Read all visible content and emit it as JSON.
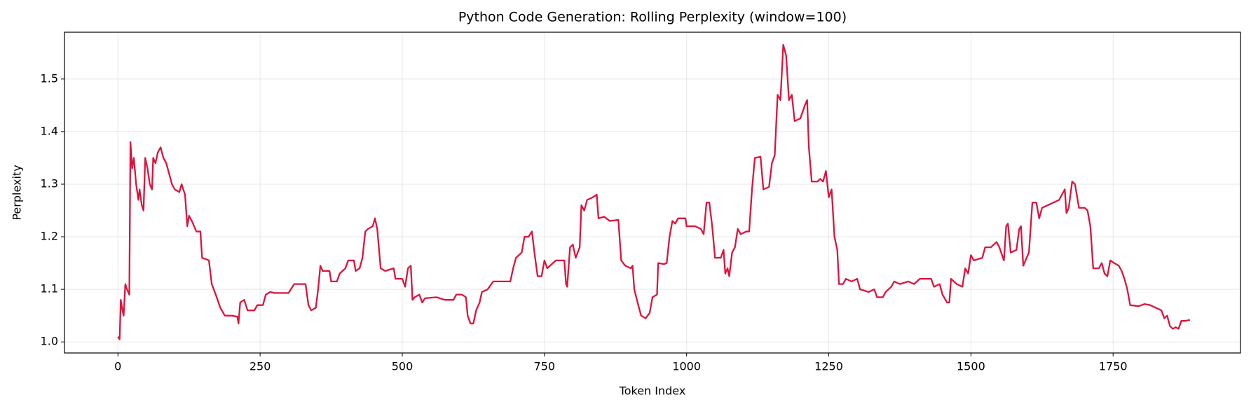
{
  "chart_data": {
    "type": "line",
    "title": "Python Code Generation: Rolling Perplexity (window=100)",
    "x_label": "Token Index",
    "y_label": "Perplexity",
    "xlim": [
      -94,
      1974
    ],
    "ylim": [
      0.979,
      1.589
    ],
    "xticks": [
      0,
      250,
      500,
      750,
      1000,
      1250,
      1500,
      1750
    ],
    "yticks": [
      {
        "value": 1,
        "label": "1.0"
      },
      1.1,
      1.2,
      1.3,
      1.4,
      1.5
    ],
    "grid": true,
    "series": [
      {
        "color": "#dc143c",
        "x": [
          0,
          3,
          5,
          8,
          10,
          13,
          16,
          20,
          22,
          25,
          28,
          32,
          36,
          38,
          42,
          45,
          48,
          52,
          56,
          60,
          62,
          66,
          70,
          75,
          80,
          85,
          90,
          95,
          100,
          108,
          112,
          118,
          122,
          125,
          130,
          138,
          145,
          148,
          160,
          165,
          172,
          180,
          188,
          200,
          210,
          212,
          215,
          222,
          228,
          240,
          245,
          255,
          260,
          268,
          275,
          300,
          310,
          330,
          335,
          340,
          348,
          352,
          356,
          360,
          372,
          375,
          385,
          390,
          400,
          405,
          415,
          418,
          425,
          430,
          435,
          440,
          448,
          452,
          456,
          462,
          470,
          485,
          488,
          500,
          505,
          510,
          515,
          518,
          522,
          530,
          535,
          540,
          560,
          575,
          590,
          595,
          605,
          612,
          615,
          620,
          625,
          630,
          636,
          640,
          650,
          660,
          670,
          690,
          695,
          700,
          710,
          715,
          722,
          728,
          733,
          738,
          745,
          750,
          755,
          765,
          770,
          785,
          788,
          790,
          795,
          800,
          805,
          812,
          815,
          820,
          825,
          835,
          842,
          845,
          855,
          865,
          880,
          885,
          892,
          902,
          905,
          908,
          915,
          920,
          928,
          935,
          940,
          948,
          950,
          960,
          965,
          970,
          975,
          980,
          985,
          998,
          1000,
          1015,
          1025,
          1030,
          1035,
          1040,
          1045,
          1050,
          1060,
          1065,
          1068,
          1072,
          1075,
          1080,
          1085,
          1090,
          1095,
          1105,
          1110,
          1115,
          1120,
          1130,
          1135,
          1145,
          1150,
          1155,
          1160,
          1165,
          1170,
          1175,
          1180,
          1185,
          1190,
          1200,
          1208,
          1212,
          1215,
          1220,
          1230,
          1235,
          1240,
          1245,
          1250,
          1255,
          1260,
          1265,
          1268,
          1275,
          1280,
          1290,
          1300,
          1305,
          1320,
          1330,
          1335,
          1345,
          1350,
          1360,
          1365,
          1375,
          1390,
          1400,
          1410,
          1430,
          1435,
          1445,
          1450,
          1458,
          1462,
          1465,
          1475,
          1485,
          1490,
          1495,
          1500,
          1505,
          1520,
          1525,
          1535,
          1545,
          1550,
          1558,
          1562,
          1565,
          1570,
          1580,
          1585,
          1588,
          1592,
          1598,
          1602,
          1608,
          1615,
          1620,
          1625,
          1635,
          1645,
          1655,
          1660,
          1665,
          1668,
          1672,
          1678,
          1683,
          1690,
          1700,
          1705,
          1710,
          1715,
          1725,
          1730,
          1735,
          1740,
          1745,
          1752,
          1760,
          1765,
          1770,
          1775,
          1780,
          1795,
          1805,
          1815,
          1825,
          1835,
          1840,
          1845,
          1850,
          1855,
          1860,
          1865,
          1870,
          1877,
          1885
        ],
        "values": [
          1.01,
          1.005,
          1.08,
          1.06,
          1.05,
          1.11,
          1.1,
          1.09,
          1.38,
          1.33,
          1.35,
          1.3,
          1.27,
          1.29,
          1.26,
          1.25,
          1.35,
          1.33,
          1.3,
          1.29,
          1.35,
          1.34,
          1.36,
          1.37,
          1.35,
          1.34,
          1.32,
          1.3,
          1.29,
          1.285,
          1.3,
          1.28,
          1.22,
          1.24,
          1.23,
          1.21,
          1.21,
          1.16,
          1.155,
          1.11,
          1.09,
          1.065,
          1.05,
          1.05,
          1.048,
          1.035,
          1.075,
          1.08,
          1.06,
          1.06,
          1.07,
          1.07,
          1.09,
          1.095,
          1.093,
          1.093,
          1.11,
          1.11,
          1.07,
          1.06,
          1.065,
          1.1,
          1.145,
          1.135,
          1.135,
          1.115,
          1.115,
          1.13,
          1.14,
          1.155,
          1.155,
          1.135,
          1.14,
          1.16,
          1.21,
          1.215,
          1.22,
          1.235,
          1.215,
          1.14,
          1.135,
          1.14,
          1.12,
          1.12,
          1.105,
          1.14,
          1.145,
          1.08,
          1.085,
          1.09,
          1.075,
          1.083,
          1.085,
          1.08,
          1.08,
          1.09,
          1.09,
          1.085,
          1.05,
          1.035,
          1.035,
          1.06,
          1.075,
          1.095,
          1.1,
          1.115,
          1.115,
          1.115,
          1.14,
          1.16,
          1.17,
          1.2,
          1.2,
          1.21,
          1.165,
          1.125,
          1.125,
          1.155,
          1.14,
          1.15,
          1.155,
          1.155,
          1.11,
          1.105,
          1.18,
          1.185,
          1.16,
          1.18,
          1.26,
          1.25,
          1.27,
          1.275,
          1.28,
          1.235,
          1.238,
          1.23,
          1.232,
          1.155,
          1.145,
          1.14,
          1.145,
          1.1,
          1.07,
          1.05,
          1.045,
          1.055,
          1.085,
          1.09,
          1.15,
          1.148,
          1.15,
          1.2,
          1.23,
          1.225,
          1.235,
          1.235,
          1.22,
          1.22,
          1.215,
          1.205,
          1.265,
          1.265,
          1.22,
          1.16,
          1.16,
          1.175,
          1.13,
          1.14,
          1.125,
          1.17,
          1.18,
          1.215,
          1.205,
          1.21,
          1.21,
          1.29,
          1.35,
          1.352,
          1.29,
          1.295,
          1.34,
          1.355,
          1.47,
          1.46,
          1.565,
          1.545,
          1.46,
          1.47,
          1.42,
          1.425,
          1.45,
          1.46,
          1.37,
          1.305,
          1.305,
          1.31,
          1.305,
          1.325,
          1.275,
          1.29,
          1.2,
          1.175,
          1.11,
          1.11,
          1.12,
          1.115,
          1.12,
          1.1,
          1.095,
          1.1,
          1.085,
          1.085,
          1.095,
          1.105,
          1.115,
          1.11,
          1.115,
          1.11,
          1.12,
          1.12,
          1.105,
          1.11,
          1.09,
          1.075,
          1.075,
          1.12,
          1.11,
          1.105,
          1.14,
          1.13,
          1.165,
          1.155,
          1.16,
          1.18,
          1.18,
          1.19,
          1.18,
          1.155,
          1.22,
          1.225,
          1.17,
          1.175,
          1.215,
          1.22,
          1.145,
          1.16,
          1.17,
          1.265,
          1.265,
          1.235,
          1.255,
          1.26,
          1.265,
          1.27,
          1.28,
          1.29,
          1.245,
          1.255,
          1.305,
          1.3,
          1.255,
          1.255,
          1.25,
          1.22,
          1.14,
          1.14,
          1.15,
          1.13,
          1.125,
          1.155,
          1.15,
          1.145,
          1.135,
          1.12,
          1.1,
          1.07,
          1.068,
          1.072,
          1.07,
          1.065,
          1.06,
          1.045,
          1.05,
          1.03,
          1.025,
          1.028,
          1.025,
          1.04,
          1.04,
          1.042
        ]
      }
    ]
  }
}
